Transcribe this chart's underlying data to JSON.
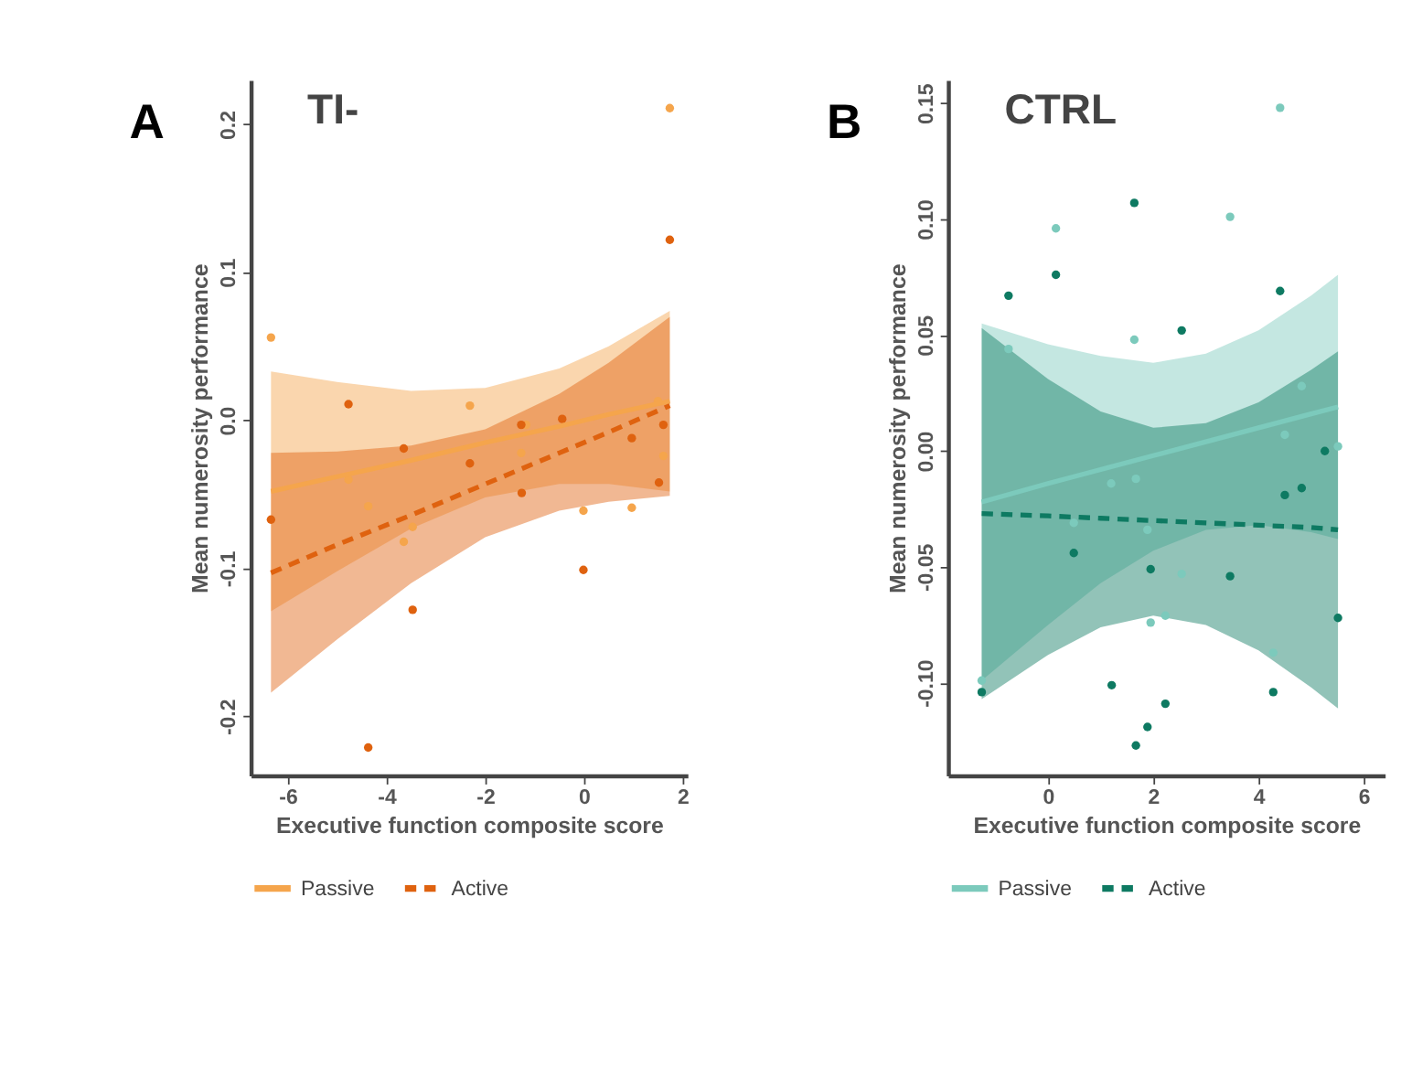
{
  "chart_data": [
    {
      "type": "scatter",
      "title": "TI-",
      "annotations": [
        "A"
      ],
      "xlabel": "Executive function composite score",
      "ylabel": "Mean numerosity performance",
      "xlim": [
        -6.75,
        2.1
      ],
      "ylim": [
        -0.24,
        0.23
      ],
      "xticks": [
        -6,
        -4,
        -2,
        0,
        2
      ],
      "yticks": [
        -0.2,
        -0.1,
        {
          "value": 0,
          "label": "0.0"
        },
        0.1,
        0.2
      ],
      "grid": false,
      "legend": "bottom",
      "series": [
        {
          "type": "scatter",
          "marker": "circle",
          "color": "#f5a54c",
          "x": [
            -6.34,
            1.74,
            -2.31,
            -1.17,
            -1.27,
            1.5,
            1.61,
            -4.77,
            -4.37,
            -3.47,
            -3.65,
            -0.01,
            0.97
          ],
          "values": [
            0.056,
            0.211,
            0.01,
            -0.003,
            -0.022,
            0.013,
            -0.024,
            -0.04,
            -0.058,
            -0.072,
            -0.082,
            -0.061,
            -0.059
          ]
        },
        {
          "type": "scatter",
          "marker": "circle",
          "color": "#df620f",
          "x": [
            1.74,
            -4.77,
            -1.27,
            -0.44,
            -3.65,
            -2.31,
            0.97,
            1.61,
            1.52,
            -6.34,
            -1.26,
            -0.01,
            -3.47,
            -4.37
          ],
          "values": [
            0.122,
            0.011,
            -0.003,
            0.001,
            -0.019,
            -0.029,
            -0.012,
            -0.003,
            -0.042,
            -0.067,
            -0.049,
            -0.101,
            -0.128,
            -0.221
          ]
        },
        {
          "type": "line",
          "name": "Passive",
          "color": "#f5a54c",
          "line_style": "solid",
          "x": [
            -6.34,
            -5,
            -3.5,
            -2,
            -0.5,
            0.5,
            1.74
          ],
          "values": [
            -0.048,
            -0.038,
            -0.027,
            -0.015,
            -0.004,
            0.004,
            0.013
          ],
          "lower": [
            -0.129,
            -0.102,
            -0.073,
            -0.052,
            -0.043,
            -0.043,
            -0.048
          ],
          "upper": [
            0.033,
            0.026,
            0.02,
            0.022,
            0.035,
            0.05,
            0.074
          ]
        },
        {
          "type": "line",
          "name": "Active",
          "color": "#df620f",
          "line_style": "dashed",
          "x": [
            -6.34,
            -5,
            -3.5,
            -2,
            -0.5,
            0.5,
            1.74
          ],
          "values": [
            -0.103,
            -0.084,
            -0.064,
            -0.043,
            -0.022,
            -0.008,
            0.01
          ],
          "lower": [
            -0.184,
            -0.148,
            -0.11,
            -0.079,
            -0.061,
            -0.055,
            -0.051
          ],
          "upper": [
            -0.022,
            -0.021,
            -0.017,
            -0.006,
            0.018,
            0.039,
            0.07
          ]
        }
      ]
    },
    {
      "type": "scatter",
      "title": "CTRL",
      "annotations": [
        "B"
      ],
      "xlabel": "Executive function composite score",
      "ylabel": "Mean numerosity performance",
      "xlim": [
        -1.9,
        6.4
      ],
      "ylim": [
        -0.14,
        0.16
      ],
      "xticks": [
        0,
        2,
        4,
        6
      ],
      "yticks": [
        {
          "value": -0.1,
          "label": "-0.10"
        },
        -0.05,
        {
          "value": 0,
          "label": "0.00"
        },
        0.05,
        {
          "value": 0.1,
          "label": "0.10"
        },
        0.15
      ],
      "grid": false,
      "legend": "bottom",
      "series": [
        {
          "type": "scatter",
          "marker": "circle",
          "color": "#7ccabc",
          "x": [
            4.41,
            3.46,
            0.15,
            1.64,
            -0.75,
            4.82,
            4.5,
            5.51,
            1.67,
            1.2,
            0.49,
            1.89,
            2.54,
            1.95,
            2.23,
            4.28,
            -1.26
          ],
          "values": [
            0.148,
            0.101,
            0.096,
            0.048,
            0.044,
            0.028,
            0.007,
            0.002,
            -0.012,
            -0.014,
            -0.031,
            -0.034,
            -0.053,
            -0.074,
            -0.071,
            -0.087,
            -0.099
          ]
        },
        {
          "type": "scatter",
          "marker": "circle",
          "color": "#0e7a62",
          "x": [
            1.64,
            0.15,
            -0.75,
            4.41,
            2.54,
            5.26,
            4.5,
            4.82,
            0.49,
            1.95,
            3.46,
            5.51,
            -1.26,
            1.21,
            4.28,
            2.23,
            1.89,
            1.67
          ],
          "values": [
            0.107,
            0.076,
            0.067,
            0.069,
            0.052,
            0.0,
            -0.019,
            -0.016,
            -0.044,
            -0.051,
            -0.054,
            -0.072,
            -0.104,
            -0.101,
            -0.104,
            -0.109,
            -0.119,
            -0.127
          ]
        },
        {
          "type": "line",
          "name": "Passive",
          "color": "#7ccabc",
          "line_style": "solid",
          "x": [
            -1.26,
            0,
            1,
            2,
            3,
            4,
            5,
            5.51
          ],
          "values": [
            -0.022,
            -0.014,
            -0.008,
            -0.002,
            0.004,
            0.01,
            0.016,
            0.019
          ],
          "lower": [
            -0.099,
            -0.075,
            -0.057,
            -0.043,
            -0.034,
            -0.032,
            -0.035,
            -0.038
          ],
          "upper": [
            0.055,
            0.046,
            0.041,
            0.038,
            0.042,
            0.052,
            0.067,
            0.076
          ]
        },
        {
          "type": "line",
          "name": "Active",
          "color": "#0e7a62",
          "line_style": "dashed",
          "x": [
            -1.26,
            0,
            1,
            2,
            3,
            4,
            5,
            5.51
          ],
          "values": [
            -0.027,
            -0.028,
            -0.029,
            -0.03,
            -0.031,
            -0.032,
            -0.033,
            -0.034
          ],
          "lower": [
            -0.107,
            -0.088,
            -0.076,
            -0.071,
            -0.075,
            -0.086,
            -0.102,
            -0.111
          ],
          "upper": [
            0.053,
            0.031,
            0.017,
            0.01,
            0.012,
            0.021,
            0.035,
            0.043
          ]
        }
      ]
    }
  ]
}
